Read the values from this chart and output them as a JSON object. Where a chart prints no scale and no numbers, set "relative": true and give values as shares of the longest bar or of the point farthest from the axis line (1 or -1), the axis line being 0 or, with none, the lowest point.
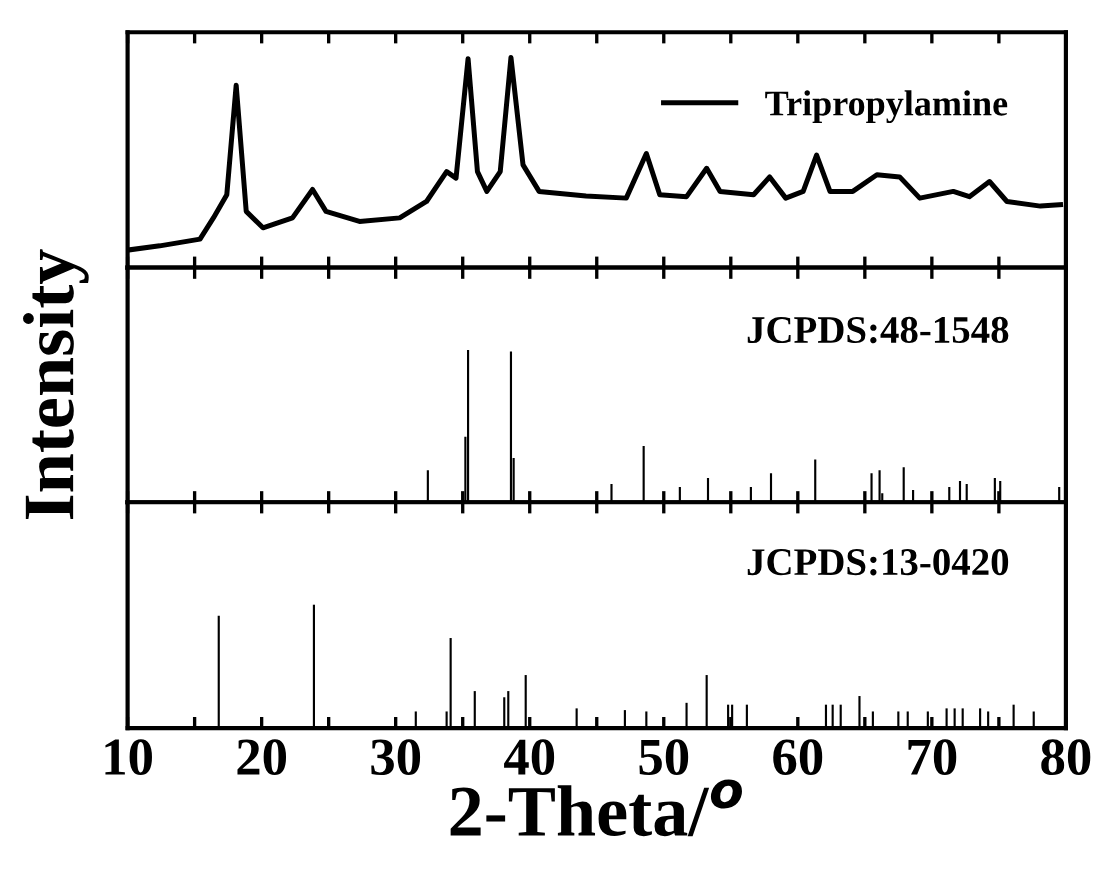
{
  "chart_data": [
    {
      "type": "line",
      "relative": true,
      "legend": "top right",
      "tick_labels": false,
      "xlim": [
        10,
        80
      ],
      "xticks": [
        10,
        {
          "value": 15,
          "label": null
        },
        20,
        {
          "value": 25,
          "label": null
        },
        30,
        {
          "value": 35,
          "label": null
        },
        40,
        {
          "value": 45,
          "label": null
        },
        50,
        {
          "value": 55,
          "label": null
        },
        60,
        {
          "value": 65,
          "label": null
        },
        70,
        {
          "value": 75,
          "label": null
        },
        80
      ],
      "series": [
        {
          "name": "Tripropylamine",
          "color": "#000000",
          "x": [
            10.15,
            12.4,
            15.4,
            16.4,
            17.4,
            18.1,
            18.85,
            20.1,
            22.3,
            23.8,
            24.8,
            27.3,
            30.3,
            32.3,
            33.8,
            34.5,
            35.4,
            36.1,
            36.8,
            37.8,
            38.6,
            39.5,
            40.7,
            44.2,
            47.2,
            48.7,
            49.7,
            51.7,
            53.2,
            54.2,
            56.7,
            57.9,
            59.1,
            60.4,
            61.4,
            62.4,
            64.1,
            65.9,
            67.6,
            69.1,
            71.6,
            72.8,
            74.3,
            75.6,
            78.1,
            79.6
          ],
          "values": [
            0.085,
            0.104,
            0.136,
            0.237,
            0.347,
            0.868,
            0.268,
            0.19,
            0.237,
            0.372,
            0.268,
            0.22,
            0.237,
            0.315,
            0.457,
            0.426,
            0.994,
            0.457,
            0.363,
            0.457,
            1.0,
            0.489,
            0.363,
            0.341,
            0.331,
            0.543,
            0.347,
            0.338,
            0.473,
            0.363,
            0.347,
            0.432,
            0.331,
            0.363,
            0.536,
            0.363,
            0.363,
            0.442,
            0.432,
            0.331,
            0.363,
            0.338,
            0.41,
            0.315,
            0.293,
            0.3
          ]
        }
      ]
    },
    {
      "type": "bar",
      "relative": true,
      "tick_labels": false,
      "ylabel": "Intensity",
      "annotations": [
        "JCPDS:48-1548"
      ],
      "xlim": [
        10,
        80
      ],
      "xticks": [
        10,
        {
          "value": 15,
          "label": null
        },
        20,
        {
          "value": 25,
          "label": null
        },
        30,
        {
          "value": 35,
          "label": null
        },
        40,
        {
          "value": 45,
          "label": null
        },
        50,
        {
          "value": 55,
          "label": null
        },
        60,
        {
          "value": 65,
          "label": null
        },
        70,
        {
          "value": 75,
          "label": null
        },
        80
      ],
      "series": [
        {
          "color": "#000000",
          "x": [
            32.4,
            35.2,
            35.4,
            38.6,
            38.8,
            46.1,
            48.5,
            51.2,
            53.3,
            56.5,
            58.0,
            61.3,
            65.5,
            66.1,
            66.3,
            67.9,
            68.6,
            71.3,
            72.1,
            72.6,
            74.7,
            75.1,
            79.5
          ],
          "values": [
            0.21,
            0.43,
            1.0,
            0.99,
            0.29,
            0.12,
            0.37,
            0.1,
            0.16,
            0.1,
            0.19,
            0.28,
            0.19,
            0.21,
            0.06,
            0.23,
            0.08,
            0.1,
            0.14,
            0.12,
            0.16,
            0.14,
            0.1
          ]
        }
      ]
    },
    {
      "type": "bar",
      "relative": true,
      "tick_labels": "x",
      "xlabel": "2-Theta/$^{o}$",
      "annotations": [
        "JCPDS:13-0420"
      ],
      "xlim": [
        10,
        80
      ],
      "xticks": [
        10,
        {
          "value": 15,
          "label": null
        },
        20,
        {
          "value": 25,
          "label": null
        },
        30,
        {
          "value": 35,
          "label": null
        },
        40,
        {
          "value": 45,
          "label": null
        },
        50,
        {
          "value": 55,
          "label": null
        },
        60,
        {
          "value": 65,
          "label": null
        },
        70,
        {
          "value": 75,
          "label": null
        },
        80
      ],
      "series": [
        {
          "color": "#000000",
          "x": [
            16.8,
            23.9,
            31.5,
            33.8,
            34.1,
            35.9,
            38.1,
            38.4,
            39.7,
            43.5,
            47.1,
            48.7,
            51.7,
            53.2,
            54.8,
            55.1,
            56.2,
            62.1,
            62.6,
            63.2,
            64.6,
            65.6,
            67.5,
            68.2,
            69.7,
            71.1,
            71.7,
            72.3,
            73.6,
            74.2,
            76.1,
            77.6
          ],
          "values": [
            0.91,
            1.0,
            0.135,
            0.135,
            0.73,
            0.3,
            0.25,
            0.3,
            0.43,
            0.16,
            0.146,
            0.135,
            0.205,
            0.43,
            0.19,
            0.19,
            0.19,
            0.19,
            0.19,
            0.19,
            0.26,
            0.135,
            0.135,
            0.135,
            0.135,
            0.16,
            0.16,
            0.16,
            0.16,
            0.135,
            0.19,
            0.135
          ]
        }
      ]
    }
  ]
}
